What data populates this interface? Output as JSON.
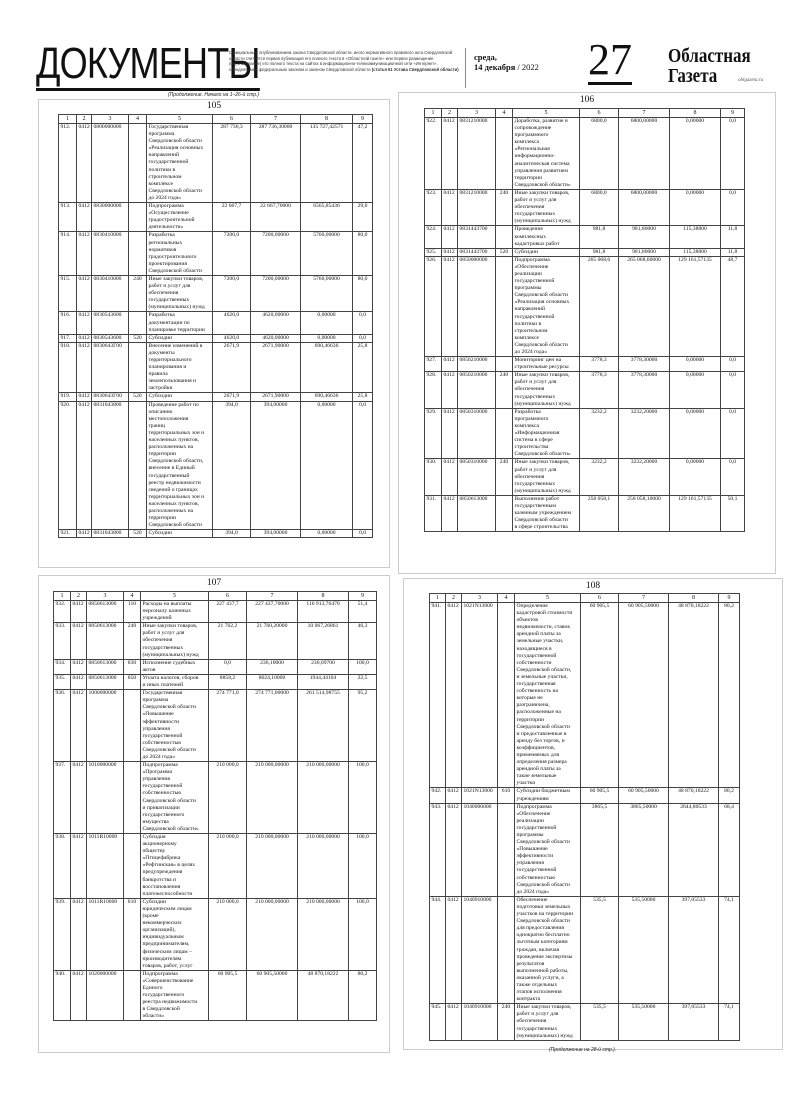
{
  "masthead": {
    "section_title": "ДОКУМЕНТЫ",
    "note": "Официальным опубликованием закона Свердловской области, иного нормативного правового акта Свердловской области считается первая публикация его полного текста в «Областной газете» или первое размещение (опубликование) его полного текста на сайтах в информационно-телекоммуникационной сети «Интернет», определяемых федеральным законом и законом Свердловской области",
    "note_bold": "(статья 61 Устава Свердловской области)",
    "weekday": "среда,",
    "date": "14 декабря",
    "year": "/ 2022",
    "page_number": "27",
    "brand_line1": "Областная",
    "brand_line2": "Газета",
    "site": "oblgazeta.ru"
  },
  "continued_from": "(Продолжение. Начало на 1–26-й стр.)",
  "continued_on": "(Продолжение на 28-й стр.).",
  "column_headers": [
    "1",
    "2",
    "3",
    "4",
    "5",
    "6",
    "7",
    "8",
    "9"
  ],
  "tables": [
    {
      "page": "105",
      "rows": [
        [
          "912.",
          "0412",
          "0800000000",
          "",
          "Государственная\nпрограмма\nСвердловской области\n«Реализация основных\nнаправлений\nгосударственной\nполитики в\nстроительном\nкомплексе\nСвердловской области\nдо 2024 года»",
          "287 736,3",
          "287 736,30000",
          "135 727,42571",
          "47,2"
        ],
        [
          "913.",
          "0412",
          "0830000000",
          "",
          "Подпрограмма\n«Осуществление\nградостроительной\nдеятельности»",
          "22 667,7",
          "22 667,70000",
          "6565,85436",
          "29,0"
        ],
        [
          "914.",
          "0412",
          "0830410000",
          "",
          "Разработка\nрегиональных\nнормативов\nградостроительного\nпроектирования\nСвердловской области",
          "7200,0",
          "7200,00000",
          "5760,00000",
          "80,0"
        ],
        [
          "915.",
          "0412",
          "0830410000",
          "240",
          "Иные закупки товаров,\nработ и услуг для\nобеспечения\nгосударственных\n(муниципальных) нужд",
          "7200,0",
          "7200,00000",
          "5760,00000",
          "80,0"
        ],
        [
          "916.",
          "0412",
          "0830543600",
          "",
          "Разработка\nдокументации по\nпланировке территории",
          "4620,0",
          "4620,00000",
          "0,00000",
          "0,0"
        ],
        [
          "917.",
          "0412",
          "0830543600",
          "520",
          "Субсидии",
          "4620,0",
          "4620,00000",
          "0,00000",
          "0,0"
        ],
        [
          "918.",
          "0412",
          "0830643Г00",
          "",
          "Внесение изменений в\nдокументы\nтерриториального\nпланирования и\nправила\nземлепользования и\nзастройки",
          "2671,9",
          "2671,90000",
          "690,46636",
          "25,8"
        ],
        [
          "919.",
          "0412",
          "0830643Г00",
          "520",
          "Субсидии",
          "2671,9",
          "2671,90000",
          "690,46636",
          "25,8"
        ],
        [
          "920.",
          "0412",
          "0831043800",
          "",
          "Проведение работ по\nописанию\nместоположения\nграниц\nтерриториальных зон и\nнаселенных пунктов,\nрасположенных на\nтерритории\nСвердловской области,\nвнесение в Единый\nгосударственный\nреестр недвижимости\nсведений о границах\nтерриториальных зон и\nнаселенных пунктов,\nрасположенных на\nтерритории\nСвердловской области",
          "394,0",
          "394,00000",
          "0,00000",
          "0,0"
        ],
        [
          "921.",
          "0412",
          "0831043800",
          "520",
          "Субсидии",
          "394,0",
          "394,00000",
          "0,00000",
          "0,0"
        ]
      ]
    },
    {
      "page": "106",
      "rows": [
        [
          "922.",
          "0412",
          "0831210000",
          "",
          "Доработка, развитие и\nсопровождение\nпрограммного\nкомплекса\n«Региональная\nинформационно-\nаналитическая система\nуправления развитием\nтерритории\nСвердловской области»",
          "6800,0",
          "6800,00000",
          "0,00000",
          "0,0"
        ],
        [
          "923.",
          "0412",
          "0831210000",
          "240",
          "Иные закупки товаров,\nработ и услуг для\nобеспечения\nгосударственных\n(муниципальных) нужд",
          "6800,0",
          "6800,00000",
          "0,00000",
          "0,0"
        ],
        [
          "924.",
          "0412",
          "0831443700",
          "",
          "Проведение\nкомплексных\nкадастровых работ",
          "981,8",
          "981,80000",
          "115,38800",
          "11,8"
        ],
        [
          "925.",
          "0412",
          "0831443700",
          "520",
          "Субсидии",
          "981,8",
          "981,80000",
          "115,38800",
          "11,8"
        ],
        [
          "926.",
          "0412",
          "0850000000",
          "",
          "Подпрограмма\n«Обеспечение\nреализации\nгосударственной\nпрограммы\nСвердловской области\n«Реализация основных\nнаправлений\nгосударственной\nполитики в\nстроительном\nкомплексе\nСвердловской области\nдо 2024 года»",
          "265 068,6",
          "265 068,60000",
          "129 161,57135",
          "48,7"
        ],
        [
          "927.",
          "0412",
          "0850210000",
          "",
          "Мониторинг цен на\nстроительные ресурсы",
          "3778,3",
          "3778,30000",
          "0,00000",
          "0,0"
        ],
        [
          "928.",
          "0412",
          "0850210000",
          "240",
          "Иные закупки товаров,\nработ и услуг для\nобеспечения\nгосударственных\n(муниципальных) нужд",
          "3778,3",
          "3778,30000",
          "0,00000",
          "0,0"
        ],
        [
          "929.",
          "0412",
          "0850310000",
          "",
          "Разработка\nпрограммного\nкомплекса\n«Информационная\nсистема в сфере\nстроительства\nСвердловской области»",
          "3232,2",
          "3232,20000",
          "0,00000",
          "0,0"
        ],
        [
          "930.",
          "0412",
          "0850310000",
          "240",
          "Иные закупки товаров,\nработ и услуг для\nобеспечения\nгосударственных\n(муниципальных) нужд",
          "3232,2",
          "3232,20000",
          "0,00000",
          "0,0"
        ],
        [
          "931.",
          "0412",
          "0850613000",
          "",
          "Выполнение работ\nгосударственным\nказенным учреждением\nСвердловской области\nв сфере строительства",
          "258 058,1",
          "258 058,10000",
          "129 161,57135",
          "50,1"
        ]
      ]
    },
    {
      "page": "107",
      "rows": [
        [
          "932.",
          "0412",
          "0850613000",
          "110",
          "Расходы на выплаты\nперсоналу казенных\nучреждений",
          "227 437,7",
          "227 437,70000",
          "116 913,76470",
          "51,4"
        ],
        [
          "933.",
          "0412",
          "0850613000",
          "240",
          "Иные закупки товаров,\nработ и услуг для\nобеспечения\nгосударственных\n(муниципальных) нужд",
          "21 762,2",
          "21 760,20000",
          "10 067,26861",
          "46,3"
        ],
        [
          "934.",
          "0412",
          "0850613000",
          "830",
          "Исполнение судебных\nактов",
          "0,0",
          "236,10000",
          "236,09700",
          "100,0"
        ],
        [
          "935.",
          "0412",
          "0850613000",
          "850",
          "Уплата налогов, сборов\nи иных платежей",
          "8858,2",
          "8624,10000",
          "1944,44104",
          "22,5"
        ],
        [
          "936.",
          "0412",
          "1000000000",
          "",
          "Государственная\nпрограмма\nСвердловской области\n«Повышение\nэффективности\nуправления\nгосударственной\nсобственностью\nСвердловской области\nдо 2024 года»",
          "274 771,0",
          "274 771,00000",
          "261 514,98755",
          "95,2"
        ],
        [
          "937.",
          "0412",
          "1010000000",
          "",
          "Подпрограмма\n«Программа\nуправления\nгосударственной\nсобственностью\nСвердловской области\nи приватизации\nгосударственного\nимущества\nСвердловской области»",
          "210 000,0",
          "210 000,00000",
          "210 000,00000",
          "100,0"
        ],
        [
          "938.",
          "0412",
          "1011R10000",
          "",
          "Субсидия\nакционерному\nобществу\n«Птицефабрика\n«Рефтинская» в целях\nпредупреждения\nбанкротства и\nвосстановления\nплатежеспособности",
          "210 000,0",
          "210 000,00000",
          "210 000,00000",
          "100,0"
        ],
        [
          "939.",
          "0412",
          "1011R10000",
          "810",
          "Субсидии\nюридическим лицам\n(кроме\nнекоммерческих\nорганизаций),\nиндивидуальным\nпредпринимателям,\nфизическим лицам –\nпроизводителям\nтоваров, работ, услуг",
          "210 000,0",
          "210 000,00000",
          "210 000,00000",
          "100,0"
        ],
        [
          "940.",
          "0412",
          "1020000000",
          "",
          "Подпрограмма\n«Совершенствование\nЕдиного\nгосударственного\nреестра недвижимости\nв Свердловской\nобласти»",
          "60 905,5",
          "60 905,50000",
          "48 870,18222",
          "80,2"
        ]
      ]
    },
    {
      "page": "108",
      "rows": [
        [
          "941.",
          "0412",
          "1021N13000",
          "",
          "Определение\nкадастровой стоимости\nобъектов\nнедвижимости, ставок\nарендной платы за\nземельные участки,\nнаходящиеся в\nгосударственной\nсобственности\nСвердловской области,\nи земельные участки,\nгосударственная\nсобственность на\nкоторые не\nразграничена,\nрасположенные на\nтерритории\nСвердловской области\nи предоставленные в\nаренду без торгов, и\nкоэффициентов,\nприменяемых для\nопределения размера\nарендной платы за\nтакие земельные\nучастки",
          "60 905,5",
          "60 905,50000",
          "48 870,18222",
          "80,2"
        ],
        [
          "942.",
          "0412",
          "1021N13000",
          "610",
          "Субсидии бюджетным\nучреждениям",
          "60 905,5",
          "60 905,50000",
          "48 870,18222",
          "80,2"
        ],
        [
          "943.",
          "0412",
          "1040000000",
          "",
          "Подпрограмма\n«Обеспечение\nреализации\nгосударственной\nпрограммы\nСвердловской области\n«Повышение\nэффективности\nуправления\nгосударственной\nсобственностью\nСвердловской области\nдо 2024 года»",
          "3865,5",
          "3865,50000",
          "2644,80533",
          "68,4"
        ],
        [
          "944.",
          "0412",
          "1040910000",
          "",
          "Обеспечение\nподготовки земельных\nучастков на территории\nСвердловской области\nдля предоставления\nоднократно бесплатно\nльготным категориям\nграждан, включая\nпроведение экспертизы\nрезультатов\nвыполненной работы,\nоказанной услуги, а\nтакже отдельных\nэтапов исполнения\nконтракта",
          "535,5",
          "535,50000",
          "397,05533",
          "74,1"
        ],
        [
          "945.",
          "0412",
          "1040910000",
          "240",
          "Иные закупки товаров,\nработ и услуг для\nобеспечения\nгосударственных\n(муниципальных) нужд",
          "535,5",
          "535,50000",
          "397,05533",
          "74,1"
        ]
      ]
    }
  ]
}
